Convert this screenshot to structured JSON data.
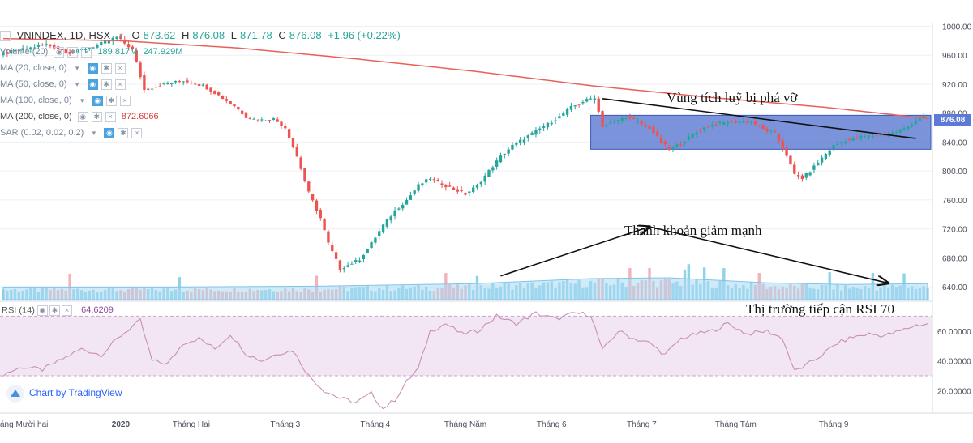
{
  "header": {
    "symbol": "VNINDEX, 1D, HSX",
    "o_label": "O",
    "o_value": "873.62",
    "h_label": "H",
    "h_value": "876.08",
    "l_label": "L",
    "l_value": "871.78",
    "c_label": "C",
    "c_value": "876.08",
    "change": "+1.96 (+0.22%)"
  },
  "indicators": [
    {
      "label": "Volume (20)",
      "value": "189.817M",
      "value2": "247.929M"
    },
    {
      "label": "MA (20, close, 0)",
      "value": ""
    },
    {
      "label": "MA (50, close, 0)",
      "value": ""
    },
    {
      "label": "MA (100, close, 0)",
      "value": ""
    },
    {
      "label": "MA (200, close, 0)",
      "value": "872.6066"
    },
    {
      "label": "SAR (0.02, 0.02, 0.2)",
      "value": ""
    }
  ],
  "rsi": {
    "label": "RSI (14)",
    "value": "64.6209"
  },
  "branding": {
    "text": "Chart by TradingView"
  },
  "annotations": {
    "consolidation": "Vùng tích luỹ bị phá vỡ",
    "liquidity": "Thanh khoản giảm mạnh",
    "rsi_note": "Thị trường tiếp cận RSI 70"
  },
  "last_price_tag": "876.08",
  "colors": {
    "up": "#26a69a",
    "down": "#ef5350",
    "ma200": "#e8605a",
    "rsi": "#c98fb5",
    "rsi_band": "#f2e6f3",
    "consolidation_box": "#4f6fcf",
    "volume_up": "#8fd3e8",
    "volume_down": "#f3b1b8",
    "volume_ma": "#aad8f2"
  },
  "chart_data": {
    "type": "candlestick",
    "y_axis": {
      "ticks": [
        "1000.00",
        "960.00",
        "920.00",
        "880.00",
        "840.00",
        "800.00",
        "760.00",
        "720.00",
        "680.00",
        "640.00"
      ],
      "ylim": [
        620,
        1005
      ]
    },
    "rsi_axis": {
      "ticks": [
        "60.00000",
        "40.00000",
        "20.00000"
      ],
      "ylim": [
        5,
        80
      ],
      "band": [
        30,
        70
      ]
    },
    "x_axis": {
      "ticks": [
        "áng Mười hai",
        "2020",
        "Tháng Hai",
        "Tháng 3",
        "Tháng 4",
        "Tháng Năm",
        "Tháng 6",
        "Tháng 7",
        "Tháng Tám",
        "Tháng 9"
      ]
    },
    "price_path": [
      [
        0,
        962
      ],
      [
        6,
        968
      ],
      [
        12,
        975
      ],
      [
        18,
        963
      ],
      [
        24,
        972
      ],
      [
        30,
        985
      ],
      [
        34,
        968
      ],
      [
        37,
        912
      ],
      [
        42,
        920
      ],
      [
        47,
        925
      ],
      [
        52,
        918
      ],
      [
        55,
        908
      ],
      [
        60,
        890
      ],
      [
        63,
        875
      ],
      [
        66,
        870
      ],
      [
        70,
        872
      ],
      [
        73,
        860
      ],
      [
        76,
        820
      ],
      [
        79,
        770
      ],
      [
        82,
        735
      ],
      [
        84,
        700
      ],
      [
        87,
        665
      ],
      [
        89,
        670
      ],
      [
        92,
        678
      ],
      [
        95,
        700
      ],
      [
        98,
        725
      ],
      [
        101,
        745
      ],
      [
        104,
        760
      ],
      [
        107,
        780
      ],
      [
        110,
        790
      ],
      [
        113,
        782
      ],
      [
        116,
        775
      ],
      [
        119,
        768
      ],
      [
        122,
        780
      ],
      [
        125,
        800
      ],
      [
        128,
        820
      ],
      [
        131,
        835
      ],
      [
        134,
        845
      ],
      [
        137,
        855
      ],
      [
        140,
        865
      ],
      [
        143,
        875
      ],
      [
        146,
        888
      ],
      [
        149,
        896
      ],
      [
        152,
        902
      ],
      [
        154,
        862
      ],
      [
        157,
        868
      ],
      [
        160,
        875
      ],
      [
        163,
        868
      ],
      [
        166,
        860
      ],
      [
        169,
        840
      ],
      [
        171,
        830
      ],
      [
        174,
        838
      ],
      [
        177,
        850
      ],
      [
        180,
        860
      ],
      [
        183,
        865
      ],
      [
        186,
        868
      ],
      [
        189,
        868
      ],
      [
        192,
        868
      ],
      [
        195,
        858
      ],
      [
        198,
        852
      ],
      [
        201,
        822
      ],
      [
        203,
        795
      ],
      [
        205,
        790
      ],
      [
        207,
        800
      ],
      [
        210,
        818
      ],
      [
        213,
        835
      ],
      [
        216,
        842
      ],
      [
        219,
        846
      ],
      [
        222,
        848
      ],
      [
        225,
        850
      ],
      [
        228,
        852
      ],
      [
        231,
        858
      ],
      [
        234,
        870
      ],
      [
        236,
        876
      ]
    ],
    "ma200": [
      [
        0,
        983
      ],
      [
        30,
        980
      ],
      [
        60,
        970
      ],
      [
        90,
        955
      ],
      [
        120,
        938
      ],
      [
        150,
        918
      ],
      [
        180,
        902
      ],
      [
        210,
        888
      ],
      [
        236,
        872.6
      ]
    ],
    "volume_ma": [
      [
        0,
        0.3
      ],
      [
        40,
        0.3
      ],
      [
        80,
        0.32
      ],
      [
        120,
        0.38
      ],
      [
        150,
        0.5
      ],
      [
        170,
        0.52
      ],
      [
        195,
        0.4
      ],
      [
        215,
        0.36
      ],
      [
        236,
        0.38
      ]
    ],
    "rsi": [
      [
        0,
        31
      ],
      [
        5,
        36
      ],
      [
        10,
        34
      ],
      [
        15,
        41
      ],
      [
        20,
        48
      ],
      [
        25,
        44
      ],
      [
        30,
        57
      ],
      [
        35,
        67
      ],
      [
        38,
        40
      ],
      [
        42,
        38
      ],
      [
        46,
        52
      ],
      [
        50,
        55
      ],
      [
        54,
        48
      ],
      [
        58,
        58
      ],
      [
        62,
        45
      ],
      [
        66,
        40
      ],
      [
        70,
        45
      ],
      [
        74,
        47
      ],
      [
        78,
        30
      ],
      [
        82,
        20
      ],
      [
        86,
        15
      ],
      [
        90,
        12
      ],
      [
        94,
        18
      ],
      [
        97,
        8
      ],
      [
        100,
        14
      ],
      [
        103,
        26
      ],
      [
        106,
        35
      ],
      [
        109,
        60
      ],
      [
        113,
        65
      ],
      [
        117,
        58
      ],
      [
        121,
        60
      ],
      [
        126,
        70
      ],
      [
        131,
        65
      ],
      [
        136,
        72
      ],
      [
        141,
        68
      ],
      [
        146,
        72
      ],
      [
        150,
        71
      ],
      [
        153,
        47
      ],
      [
        157,
        60
      ],
      [
        161,
        55
      ],
      [
        165,
        52
      ],
      [
        169,
        44
      ],
      [
        173,
        55
      ],
      [
        177,
        58
      ],
      [
        181,
        60
      ],
      [
        185,
        65
      ],
      [
        190,
        58
      ],
      [
        195,
        60
      ],
      [
        199,
        55
      ],
      [
        202,
        33
      ],
      [
        205,
        37
      ],
      [
        209,
        44
      ],
      [
        213,
        52
      ],
      [
        217,
        56
      ],
      [
        221,
        58
      ],
      [
        225,
        57
      ],
      [
        229,
        60
      ],
      [
        233,
        64
      ],
      [
        236,
        64.6
      ]
    ],
    "bars_total": 237
  }
}
